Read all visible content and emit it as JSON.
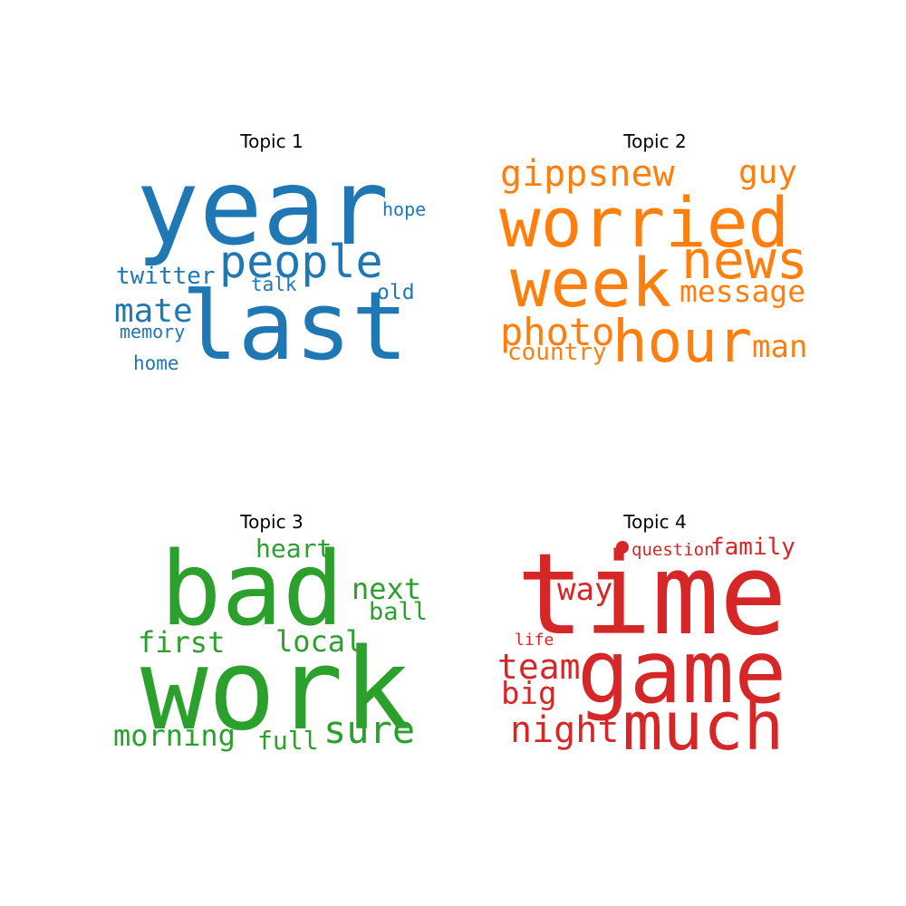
{
  "panels": [
    {
      "title": "Topic 1",
      "color": "#1f77b4",
      "words": [
        "year",
        "last",
        "people",
        "twitter",
        "mate",
        "memory",
        "home",
        "talk",
        "old",
        "hope"
      ]
    },
    {
      "title": "Topic 2",
      "color": "#ff7f0e",
      "words": [
        "gippsnew",
        "guy",
        "worried",
        "news",
        "week",
        "message",
        "photo",
        "hour",
        "man",
        "country"
      ]
    },
    {
      "title": "Topic 3",
      "color": "#2ca02c",
      "words": [
        "bad",
        "heart",
        "next",
        "ball",
        "first",
        "local",
        "work",
        "morning",
        "full",
        "sure"
      ]
    },
    {
      "title": "Topic 4",
      "color": "#d62728",
      "words": [
        "question",
        "family",
        "time",
        "way",
        "life",
        "team",
        "game",
        "big",
        "night",
        "much"
      ]
    }
  ]
}
